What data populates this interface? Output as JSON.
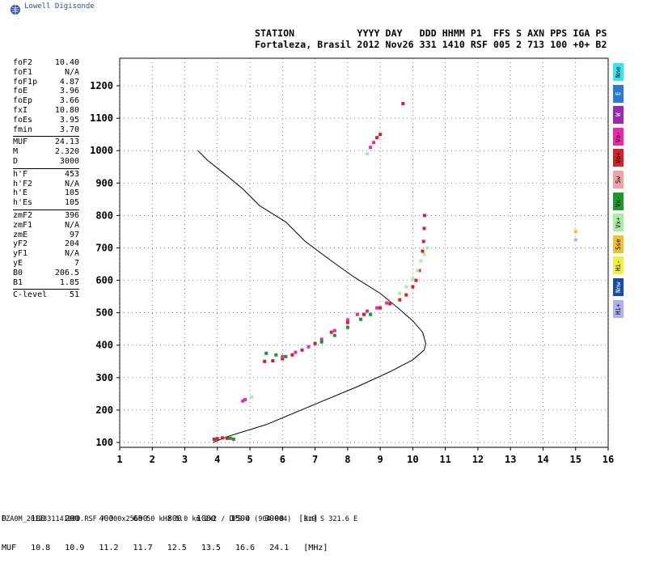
{
  "brand": {
    "name": "Lowell Digisonde",
    "logo_icon": "globe-icon"
  },
  "header": {
    "line1": "STATION           YYYY DAY   DDD HHMM P1  FFS S AXN PPS IGA PS",
    "line2": "Fortaleza, Brasil 2012 Nov26 331 1410 RSF 005 2 713 100 +0+ B2"
  },
  "params": {
    "group1": [
      {
        "k": "foF2",
        "v": "10.40"
      },
      {
        "k": "foF1",
        "v": "N/A"
      },
      {
        "k": "foF1p",
        "v": "4.87"
      },
      {
        "k": "foE",
        "v": "3.96"
      },
      {
        "k": "foEp",
        "v": "3.66"
      },
      {
        "k": "fxI",
        "v": "10.80"
      },
      {
        "k": "foEs",
        "v": "3.95"
      },
      {
        "k": "fmin",
        "v": "3.70"
      }
    ],
    "group2": [
      {
        "k": "MUF",
        "v": "24.13"
      },
      {
        "k": "M",
        "v": "2.320"
      },
      {
        "k": "D",
        "v": "3000"
      }
    ],
    "group3": [
      {
        "k": "h'F",
        "v": "453"
      },
      {
        "k": "h'F2",
        "v": "N/A"
      },
      {
        "k": "h'E",
        "v": "105"
      },
      {
        "k": "h'Es",
        "v": "105"
      }
    ],
    "group4": [
      {
        "k": "zmF2",
        "v": "396"
      },
      {
        "k": "zmF1",
        "v": "N/A"
      },
      {
        "k": "zmE",
        "v": "97"
      },
      {
        "k": "yF2",
        "v": "204"
      },
      {
        "k": "yF1",
        "v": "N/A"
      },
      {
        "k": "yE",
        "v": "7"
      },
      {
        "k": "B0",
        "v": "206.5"
      },
      {
        "k": "B1",
        "v": "1.85"
      }
    ],
    "group5": [
      {
        "k": "C-level",
        "v": "51"
      }
    ]
  },
  "legend": [
    {
      "label": "Nne",
      "color": "#33e6f0"
    },
    {
      "label": "E",
      "color": "#2a7ad6"
    },
    {
      "label": "W",
      "color": "#9a2ab0"
    },
    {
      "label": "Vo-",
      "color": "#e82aa8"
    },
    {
      "label": "Vo+",
      "color": "#d4202a"
    },
    {
      "label": "Sw",
      "color": "#f4a0a8"
    },
    {
      "label": "Vx-",
      "color": "#1a9a2a"
    },
    {
      "label": "Vx+",
      "color": "#a8f0a0"
    },
    {
      "label": "Sse",
      "color": "#f0c030"
    },
    {
      "label": "Hi-",
      "color": "#f0f040"
    },
    {
      "label": "Nnw",
      "color": "#1a4aa8"
    },
    {
      "label": "Hi+",
      "color": "#b0b0f0"
    }
  ],
  "footer": {
    "d_row": "D     100    200    400    600    800   1000   1500   3000   [km]",
    "muf_row": "MUF   10.8   10.9   11.2   11.7   12.5   13.5   16.6   24.1   [MHz]",
    "file_line": "FZA0M_2012331141000.RSF / 300x256h 50 kHz 5.0 km 2x2 / DPS-4 (904-904)   3.9 S 321.6 E"
  },
  "chart_data": {
    "type": "scatter",
    "xlabel": "",
    "ylabel": "",
    "xlim": [
      1,
      16
    ],
    "ylim": [
      85,
      1285
    ],
    "x_ticks": [
      1,
      2,
      3,
      4,
      5,
      6,
      7,
      8,
      9,
      10,
      11,
      12,
      13,
      14,
      15,
      16
    ],
    "y_ticks": [
      100,
      200,
      300,
      400,
      500,
      600,
      700,
      800,
      900,
      1000,
      1100,
      1200
    ],
    "grid": true,
    "profile_line": {
      "name": "",
      "color": "#000000",
      "points": [
        [
          3.87,
          100
        ],
        [
          4.3,
          118
        ],
        [
          5.5,
          155
        ],
        [
          7.0,
          218
        ],
        [
          8.3,
          272
        ],
        [
          9.3,
          318
        ],
        [
          10.0,
          355
        ],
        [
          10.35,
          385
        ],
        [
          10.4,
          405
        ],
        [
          10.3,
          440
        ],
        [
          10.0,
          475
        ],
        [
          9.6,
          510
        ],
        [
          9.0,
          560
        ],
        [
          8.2,
          610
        ],
        [
          7.5,
          660
        ],
        [
          6.7,
          720
        ],
        [
          6.1,
          780
        ],
        [
          5.3,
          830
        ],
        [
          4.8,
          880
        ],
        [
          4.2,
          930
        ],
        [
          3.7,
          970
        ],
        [
          3.4,
          1000
        ]
      ]
    },
    "series": [
      {
        "name": "Vo+",
        "color": "#d4202a",
        "points": [
          [
            3.9,
            110
          ],
          [
            4.0,
            112
          ],
          [
            4.15,
            114
          ],
          [
            4.3,
            113
          ],
          [
            5.45,
            350
          ],
          [
            5.7,
            352
          ],
          [
            6.0,
            358
          ],
          [
            6.3,
            370
          ],
          [
            6.6,
            385
          ],
          [
            7.0,
            405
          ],
          [
            7.5,
            440
          ],
          [
            8.0,
            470
          ],
          [
            8.5,
            495
          ],
          [
            9.0,
            515
          ],
          [
            9.3,
            528
          ],
          [
            9.6,
            540
          ],
          [
            9.8,
            555
          ],
          [
            10.0,
            580
          ],
          [
            10.1,
            600
          ],
          [
            10.2,
            630
          ],
          [
            10.25,
            660
          ],
          [
            10.3,
            690
          ],
          [
            10.33,
            720
          ],
          [
            10.35,
            760
          ],
          [
            10.36,
            800
          ],
          [
            8.9,
            1040
          ],
          [
            9.0,
            1050
          ],
          [
            9.7,
            1145
          ]
        ]
      },
      {
        "name": "Vo-",
        "color": "#e82aa8",
        "points": [
          [
            6.0,
            365
          ],
          [
            6.4,
            378
          ],
          [
            6.8,
            395
          ],
          [
            7.2,
            418
          ],
          [
            7.6,
            445
          ],
          [
            8.0,
            478
          ],
          [
            8.3,
            495
          ],
          [
            8.6,
            505
          ],
          [
            8.9,
            515
          ],
          [
            9.2,
            530
          ],
          [
            4.78,
            228
          ],
          [
            4.85,
            232
          ],
          [
            8.7,
            1010
          ],
          [
            8.8,
            1025
          ]
        ]
      },
      {
        "name": "Vx-",
        "color": "#1a9a2a",
        "points": [
          [
            4.4,
            113
          ],
          [
            4.5,
            110
          ],
          [
            5.5,
            375
          ],
          [
            5.8,
            370
          ],
          [
            6.1,
            365
          ],
          [
            7.2,
            410
          ],
          [
            7.6,
            430
          ],
          [
            8.0,
            455
          ],
          [
            8.4,
            480
          ],
          [
            8.7,
            495
          ]
        ]
      },
      {
        "name": "Vx+",
        "color": "#a8f0a0",
        "points": [
          [
            9.6,
            560
          ],
          [
            9.8,
            580
          ],
          [
            10.0,
            605
          ],
          [
            10.15,
            630
          ],
          [
            10.25,
            660
          ],
          [
            10.35,
            680
          ],
          [
            10.45,
            700
          ],
          [
            5.05,
            240
          ],
          [
            8.6,
            990
          ]
        ]
      },
      {
        "name": "Sse",
        "color": "#f0c030",
        "points": [
          [
            15.0,
            750
          ]
        ]
      },
      {
        "name": "Hi+",
        "color": "#b0b0f0",
        "points": [
          [
            15.0,
            725
          ]
        ]
      }
    ]
  }
}
